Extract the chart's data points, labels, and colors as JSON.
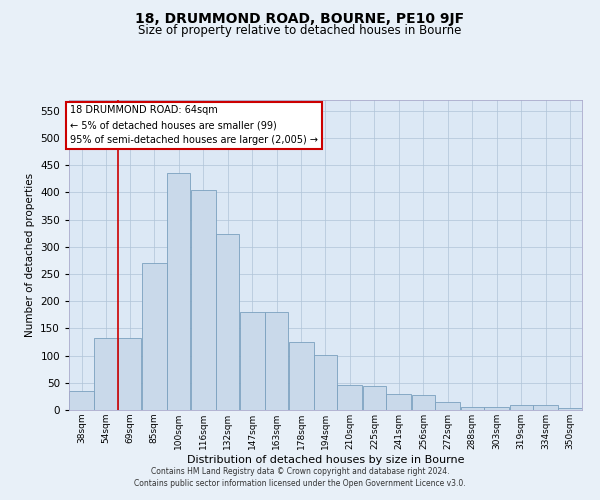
{
  "title": "18, DRUMMOND ROAD, BOURNE, PE10 9JF",
  "subtitle": "Size of property relative to detached houses in Bourne",
  "xlabel": "Distribution of detached houses by size in Bourne",
  "ylabel": "Number of detached properties",
  "footer_line1": "Contains HM Land Registry data © Crown copyright and database right 2024.",
  "footer_line2": "Contains public sector information licensed under the Open Government Licence v3.0.",
  "bar_color": "#c9d9ea",
  "bar_edge_color": "#7aa0be",
  "grid_color": "#b0c4d8",
  "background_color": "#dce8f5",
  "fig_background_color": "#e8f0f8",
  "annotation_line1": "18 DRUMMOND ROAD: 64sqm",
  "annotation_line2": "← 5% of detached houses are smaller (99)",
  "annotation_line3": "95% of semi-detached houses are larger (2,005) →",
  "annotation_box_color": "#ffffff",
  "annotation_box_edge": "#cc0000",
  "vline_color": "#cc0000",
  "vline_x_bin_index": 2,
  "categories": [
    "38sqm",
    "54sqm",
    "69sqm",
    "85sqm",
    "100sqm",
    "116sqm",
    "132sqm",
    "147sqm",
    "163sqm",
    "178sqm",
    "194sqm",
    "210sqm",
    "225sqm",
    "241sqm",
    "256sqm",
    "272sqm",
    "288sqm",
    "303sqm",
    "319sqm",
    "334sqm",
    "350sqm"
  ],
  "bin_edges": [
    30.5,
    46.5,
    61.5,
    76.5,
    92.5,
    107.5,
    123.5,
    138.5,
    154.5,
    169.5,
    185.5,
    200.5,
    216.5,
    231.5,
    247.5,
    262.5,
    278.5,
    293.5,
    309.5,
    324.5,
    340.5,
    355.5
  ],
  "values": [
    35,
    133,
    133,
    270,
    435,
    405,
    323,
    180,
    180,
    125,
    102,
    46,
    45,
    29,
    28,
    15,
    6,
    5,
    9,
    10,
    4
  ],
  "ylim": [
    0,
    570
  ],
  "yticks": [
    0,
    50,
    100,
    150,
    200,
    250,
    300,
    350,
    400,
    450,
    500,
    550
  ]
}
